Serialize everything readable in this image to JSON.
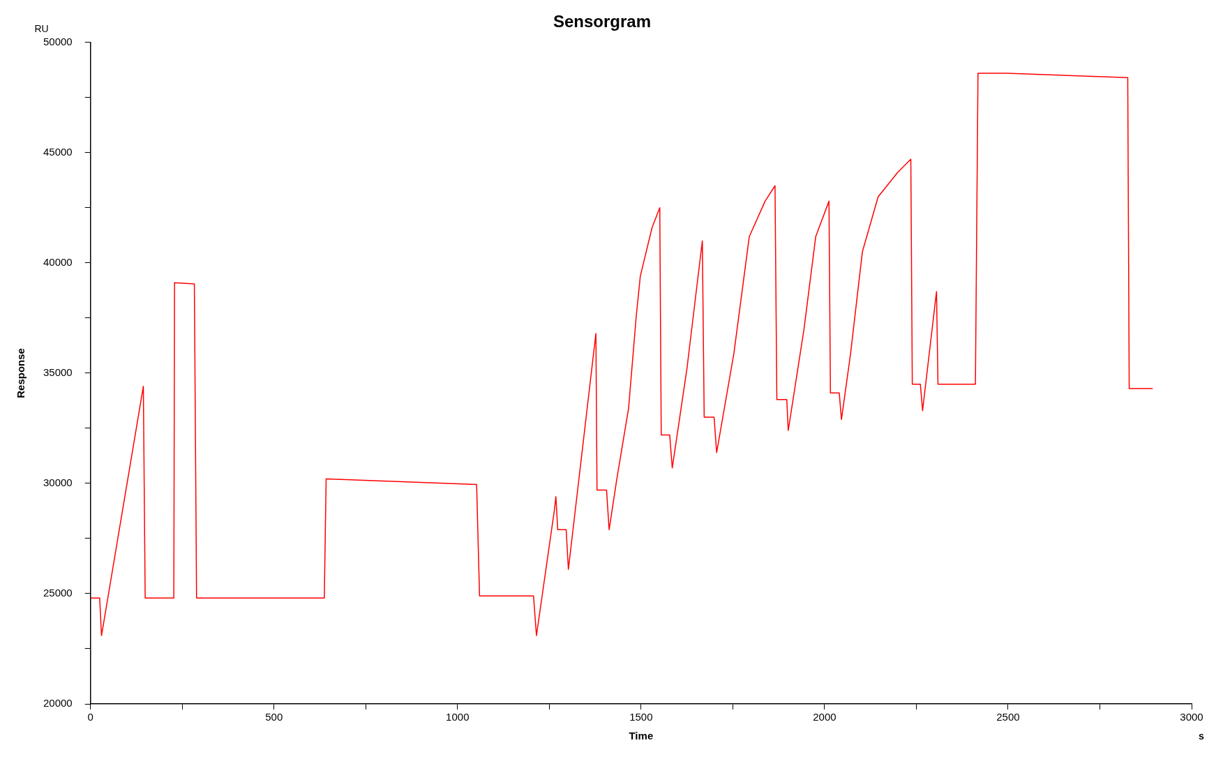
{
  "chart_data": {
    "type": "line",
    "title": "Sensorgram",
    "xlabel": "Time",
    "ylabel": "Response",
    "annotations": [
      "RU",
      "s"
    ],
    "x": [
      0,
      25,
      30,
      144,
      149,
      227,
      229,
      283,
      289,
      637,
      642,
      733,
      1052,
      1060,
      1207,
      1215,
      1264,
      1268,
      1273,
      1296,
      1302,
      1377,
      1380,
      1406,
      1413,
      1434,
      1466,
      1487,
      1498,
      1530,
      1551,
      1555,
      1578,
      1585,
      1625,
      1667,
      1672,
      1699,
      1706,
      1753,
      1795,
      1838,
      1865,
      1870,
      1897,
      1901,
      1944,
      1976,
      2012,
      2016,
      2040,
      2046,
      2071,
      2103,
      2146,
      2199,
      2235,
      2239,
      2261,
      2267,
      2305,
      2309,
      2411,
      2418,
      2496,
      2826,
      2830,
      2894
    ],
    "series": [
      {
        "color": "#ff0000",
        "values": [
          24800,
          24800,
          23100,
          34400,
          24800,
          24800,
          39100,
          39050,
          24800,
          24800,
          30200,
          30150,
          29950,
          24900,
          24900,
          23100,
          28800,
          29400,
          27900,
          27900,
          26100,
          36800,
          29700,
          29700,
          27900,
          30200,
          33400,
          37600,
          39400,
          41600,
          42500,
          32200,
          32200,
          30700,
          35200,
          41000,
          33000,
          33000,
          31400,
          35900,
          41200,
          42800,
          43500,
          33800,
          33800,
          32400,
          37000,
          41200,
          42800,
          34100,
          34100,
          32900,
          35900,
          40500,
          43000,
          44100,
          44700,
          34500,
          34500,
          33300,
          38700,
          34500,
          34500,
          48600,
          48600,
          48400,
          34300,
          34300
        ]
      }
    ],
    "xlim": [
      0,
      3000
    ],
    "xticks": [
      0,
      {
        "value": 250,
        "label": null
      },
      500,
      {
        "value": 750,
        "label": null
      },
      1000,
      {
        "value": 1250,
        "label": null
      },
      1500,
      {
        "value": 1750,
        "label": null
      },
      2000,
      {
        "value": 2250,
        "label": null
      },
      2500,
      {
        "value": 2750,
        "label": null
      },
      3000
    ],
    "ylim": [
      20000,
      50000
    ],
    "yticks": [
      20000,
      {
        "value": 22500,
        "label": null
      },
      25000,
      {
        "value": 27500,
        "label": null
      },
      30000,
      {
        "value": 32500,
        "label": null
      },
      35000,
      {
        "value": 37500,
        "label": null
      },
      40000,
      {
        "value": 42500,
        "label": null
      },
      45000,
      {
        "value": 47500,
        "label": null
      },
      50000
    ],
    "grid": false,
    "legend": false,
    "marker": "none",
    "line_style": "solid"
  }
}
